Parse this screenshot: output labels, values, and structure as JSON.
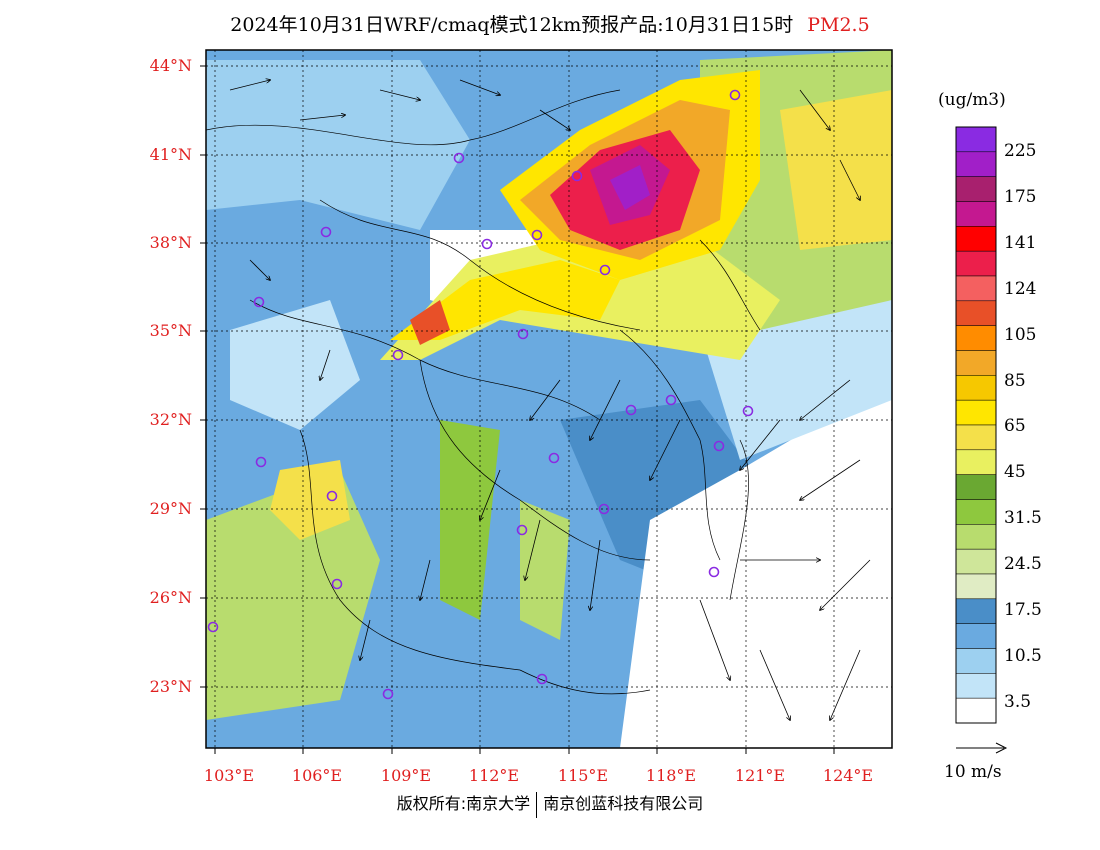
{
  "title": {
    "main": "2024年10月31日WRF/cmaq模式12km预报产品:10月31日15时",
    "species": "PM2.5",
    "species_color": "#e02020"
  },
  "axes": {
    "lat_labels": [
      "44°N",
      "41°N",
      "38°N",
      "35°N",
      "32°N",
      "29°N",
      "26°N",
      "23°N"
    ],
    "lon_labels": [
      "103°E",
      "106°E",
      "109°E",
      "112°E",
      "115°E",
      "118°E",
      "121°E",
      "124°E"
    ],
    "label_color": "#e02020"
  },
  "colorbar": {
    "unit": "(ug/m3)",
    "labels": [
      "225",
      "175",
      "141",
      "124",
      "105",
      "85",
      "65",
      "45",
      "31.5",
      "24.5",
      "17.5",
      "10.5",
      "3.5"
    ],
    "colors": [
      "#8a2be2",
      "#a11fc8",
      "#a8206e",
      "#c41890",
      "#ff0000",
      "#ec1f4b",
      "#f46060",
      "#e85028",
      "#ff8c00",
      "#f2a828",
      "#f6c800",
      "#ffe600",
      "#f4e04a",
      "#e9f060",
      "#6aa832",
      "#8ec83e",
      "#b8dc6e",
      "#cfe69a",
      "#e0ecc4",
      "#4a8ec8",
      "#6aaae0",
      "#9dd0f0",
      "#c2e4f8",
      "#ffffff"
    ]
  },
  "vector_key": {
    "label": "10 m/s"
  },
  "footer": {
    "left": "版权所有:南京大学",
    "right": "南京创蓝科技有限公司"
  }
}
